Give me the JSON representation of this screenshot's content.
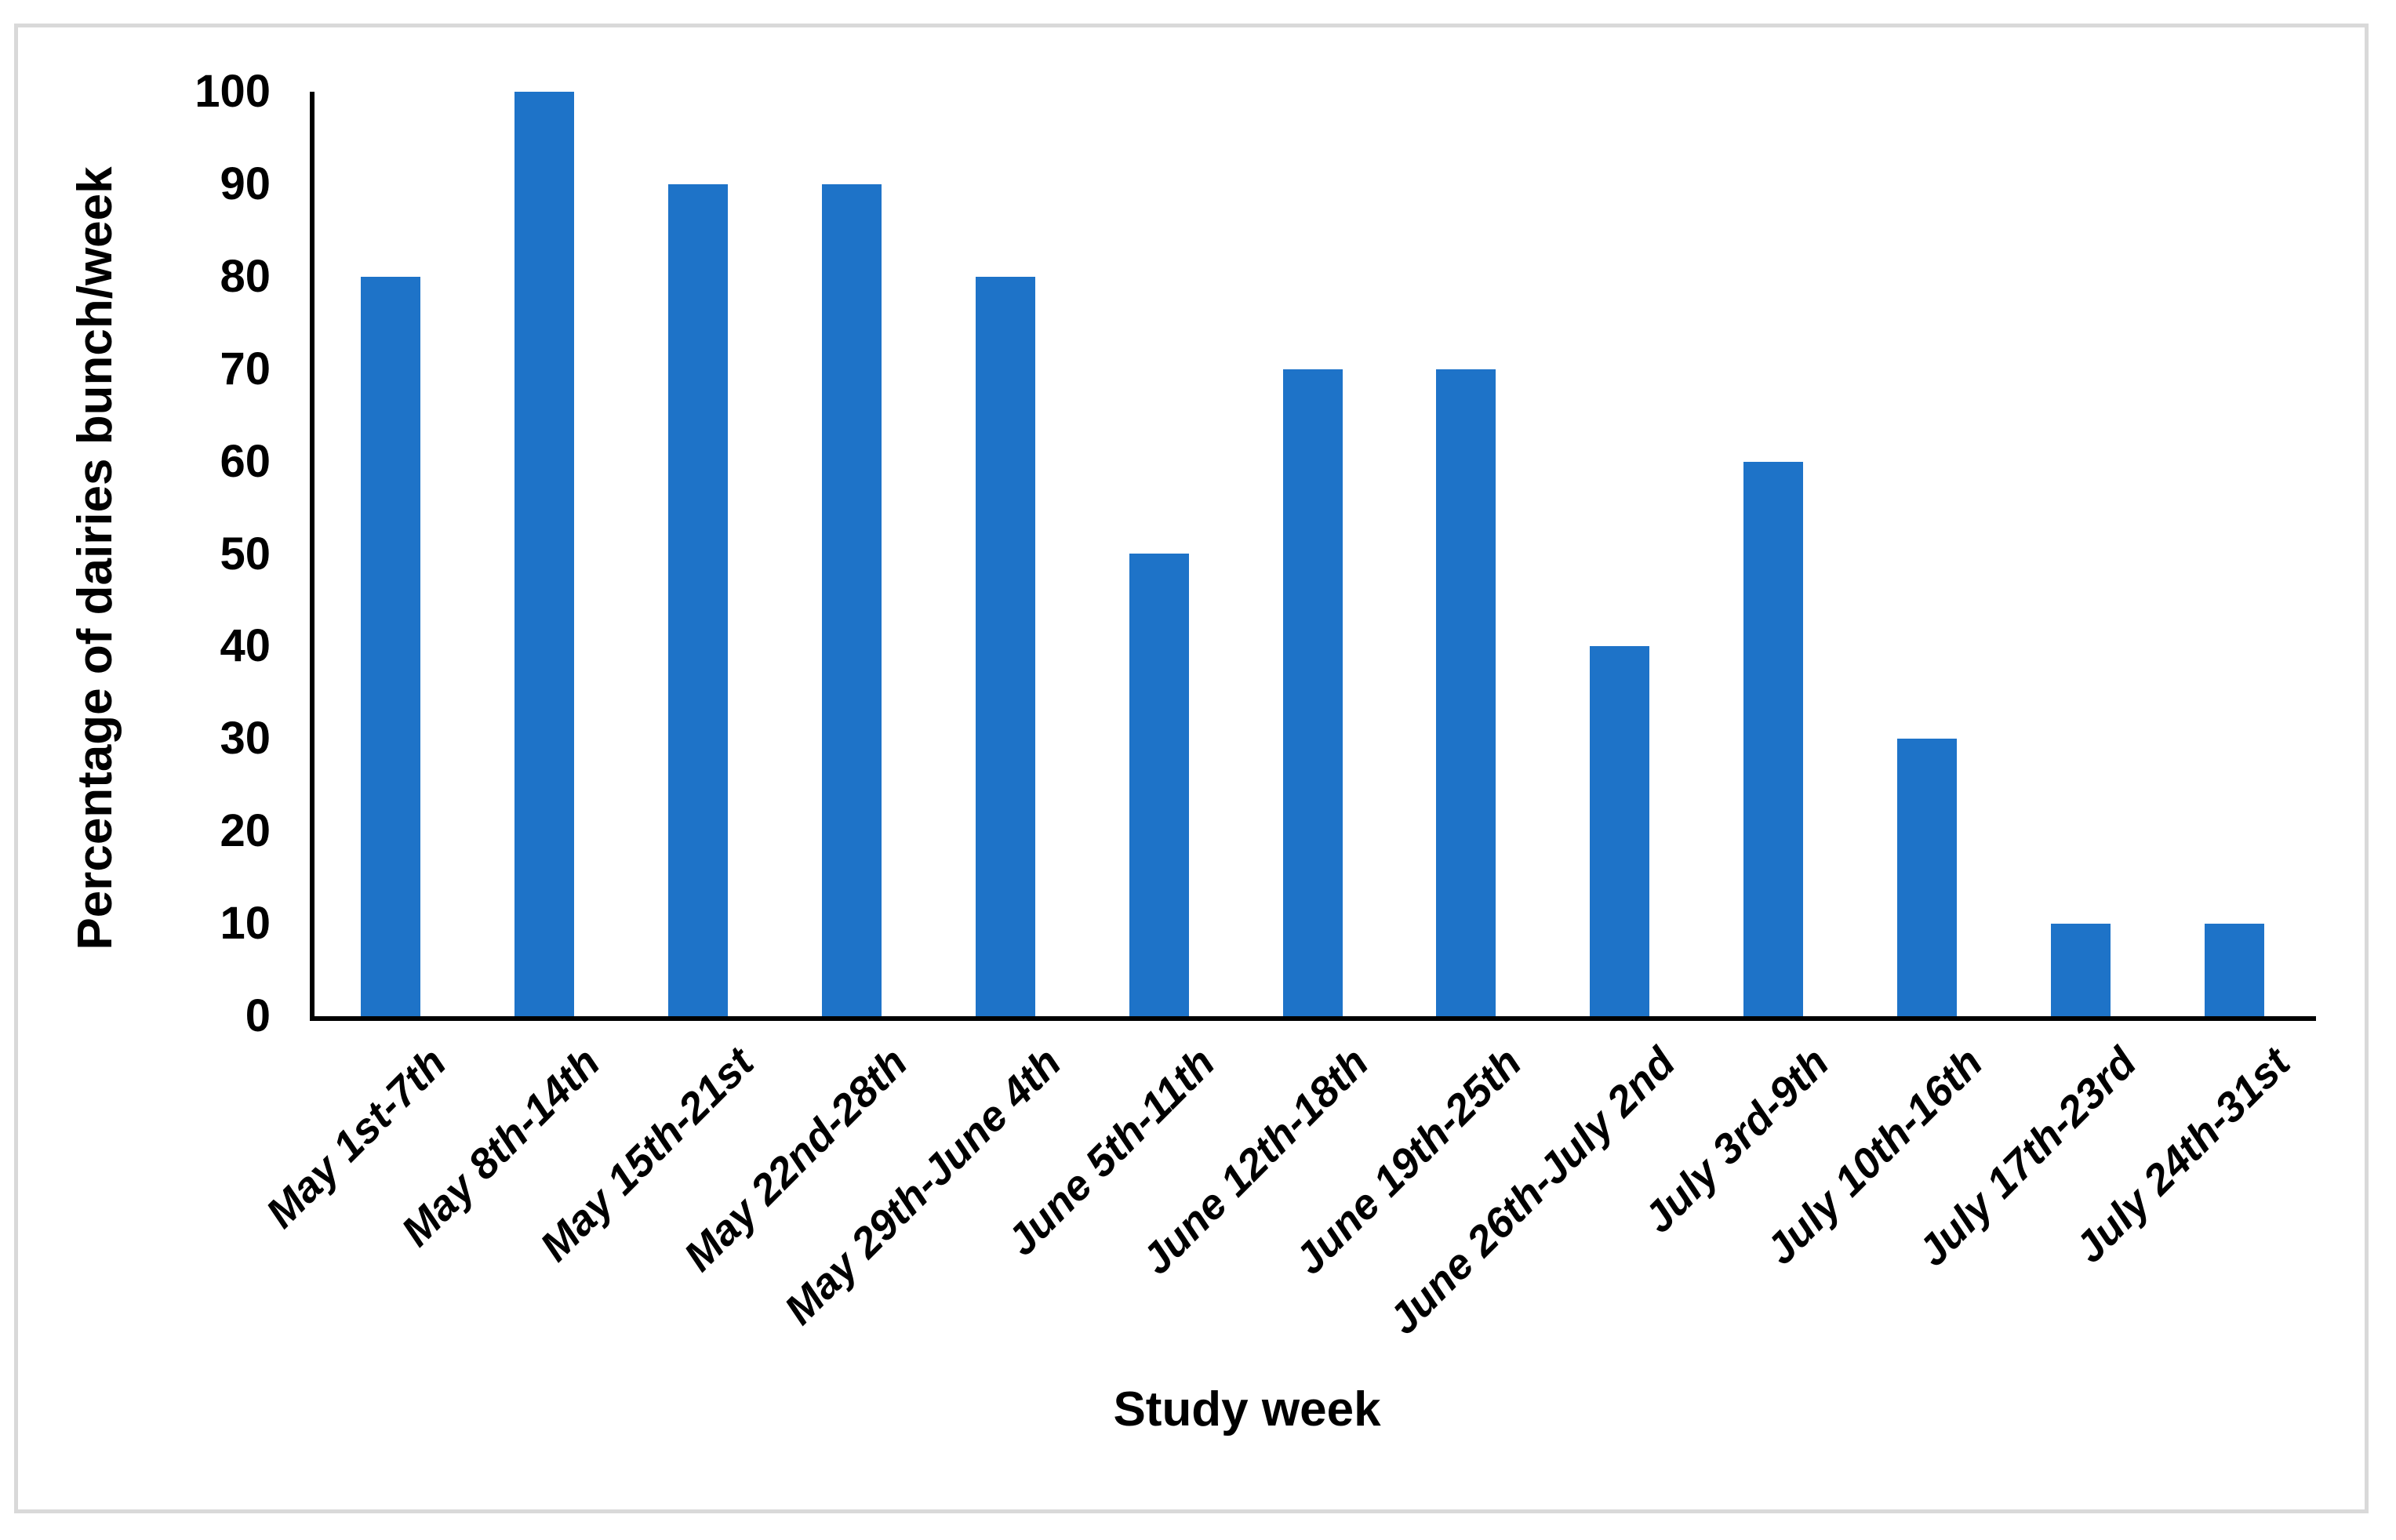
{
  "chart_data": {
    "type": "bar",
    "title": "",
    "categories": [
      "May 1st-7th",
      "May 8th-14th",
      "May 15th-21st",
      "May 22nd-28th",
      "May 29th-June 4th",
      "June 5th-11th",
      "June 12th-18th",
      "June 19th-25th",
      "June 26th-July 2nd",
      "July 3rd-9th",
      "July 10th-16th",
      "July 17th-23rd",
      "July 24th-31st"
    ],
    "values": [
      80,
      100,
      90,
      90,
      80,
      50,
      70,
      70,
      40,
      60,
      30,
      10,
      10
    ],
    "xlabel": "Study week",
    "ylabel": "Percentage of dairies bunch/week",
    "ylim": [
      0,
      100
    ],
    "yticks": [
      0,
      10,
      20,
      30,
      40,
      50,
      60,
      70,
      80,
      90,
      100
    ],
    "grid": false,
    "legend": "none",
    "bar_color": "#1e73c8",
    "axis_color": "#000000",
    "frame_border_color": "#d9d9d9"
  }
}
